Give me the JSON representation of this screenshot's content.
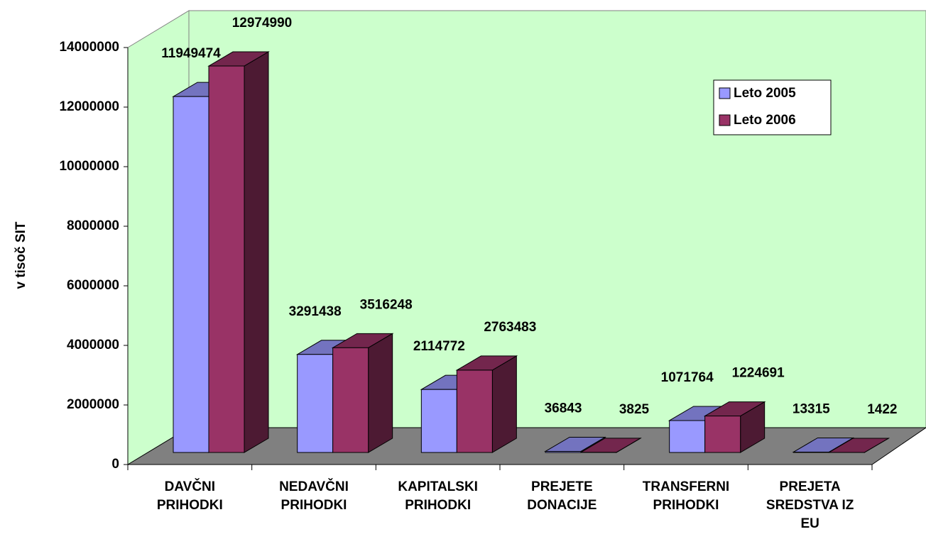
{
  "chart_data": {
    "type": "bar3d",
    "y_label": "v tisoč SIT",
    "categories": [
      [
        "DAVČNI",
        "PRIHODKI"
      ],
      [
        "NEDAVČNI",
        "PRIHODKI"
      ],
      [
        "KAPITALSKI",
        "PRIHODKI"
      ],
      [
        "PREJETE",
        "DONACIJE"
      ],
      [
        "TRANSFERNI",
        "PRIHODKI"
      ],
      [
        "PREJETA",
        "SREDSTVA IZ",
        "EU"
      ]
    ],
    "series": [
      {
        "name": "Leto 2005",
        "color": "#9999ff",
        "values": [
          11949474,
          3291438,
          2114772,
          36843,
          1071764,
          13315
        ]
      },
      {
        "name": "Leto 2006",
        "color": "#993366",
        "values": [
          12974990,
          3516248,
          2763483,
          3825,
          1224691,
          1422
        ]
      }
    ],
    "ylim": [
      0,
      14000000
    ],
    "yticks": [
      0,
      2000000,
      4000000,
      6000000,
      8000000,
      10000000,
      12000000,
      14000000
    ],
    "legend": "upper right",
    "wall_color": "#ccffcc",
    "floor_color": "#808080"
  }
}
